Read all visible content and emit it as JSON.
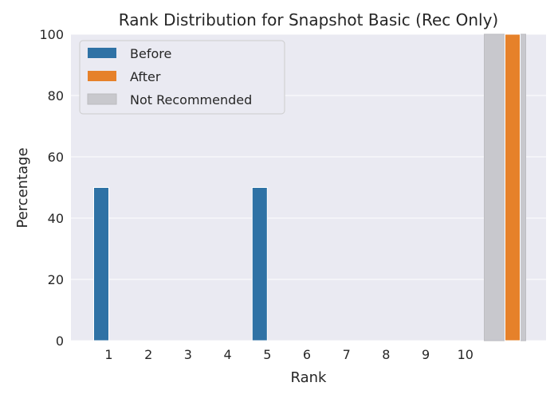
{
  "chart_data": {
    "type": "bar",
    "title": "Rank Distribution for Snapshot Basic (Rec Only)",
    "xlabel": "Rank",
    "ylabel": "Percentage",
    "ylim": [
      0,
      100
    ],
    "yticks": [
      0,
      20,
      40,
      60,
      80,
      100
    ],
    "categories": [
      "1",
      "2",
      "3",
      "4",
      "5",
      "6",
      "7",
      "8",
      "9",
      "10",
      ""
    ],
    "series": [
      {
        "name": "Before",
        "color": "#2f72a5",
        "values": [
          50,
          0,
          0,
          0,
          50,
          0,
          0,
          0,
          0,
          0,
          0
        ]
      },
      {
        "name": "After",
        "color": "#e6812a",
        "values": [
          0,
          0,
          0,
          0,
          0,
          0,
          0,
          0,
          0,
          0,
          100
        ]
      }
    ],
    "highlight": {
      "name": "Not Recommended",
      "color": "#c8c8cd",
      "category_index": 10
    },
    "grid": true,
    "background": "#eaeaf2",
    "legend_position": "top-left"
  }
}
